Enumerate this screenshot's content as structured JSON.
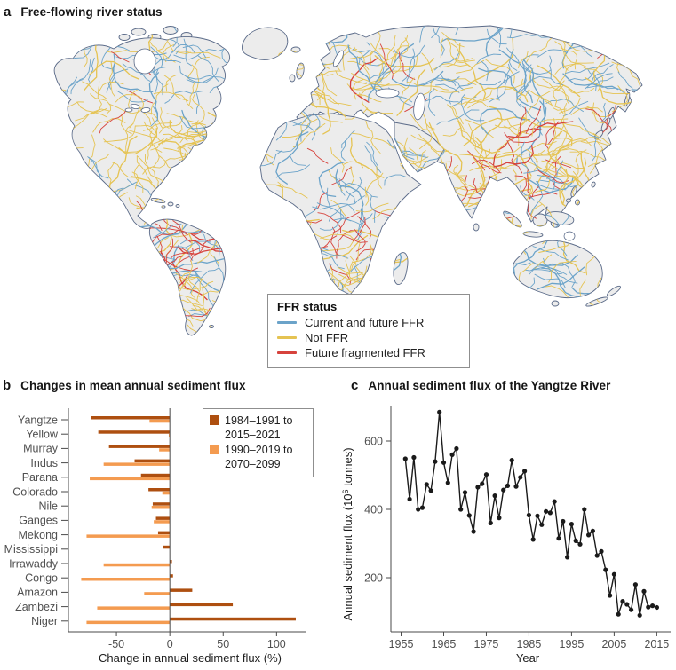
{
  "figure": {
    "bg": "#ffffff"
  },
  "panels": {
    "a": {
      "letter": "a",
      "title": "Free-flowing river status"
    },
    "b": {
      "letter": "b",
      "title": "Changes in mean annual sediment flux"
    },
    "c": {
      "letter": "c",
      "title": "Annual sediment flux of the Yangtze River"
    }
  },
  "map": {
    "land_fill": "#ececec",
    "coast_stroke": "#5a6a88",
    "legend": {
      "title": "FFR status",
      "items": [
        {
          "label": "Current and future FFR",
          "color": "#6ba3c9"
        },
        {
          "label": "Not FFR",
          "color": "#e5c352"
        },
        {
          "label": "Future fragmented FFR",
          "color": "#d6423c"
        }
      ]
    }
  },
  "chart_data": [
    {
      "type": "bar",
      "orientation": "horizontal",
      "title": "Changes in mean annual sediment flux",
      "xlabel": "Change in annual sediment flux (%)",
      "xlim": [
        -95,
        128
      ],
      "xticks": [
        -50,
        0,
        50,
        100
      ],
      "grid": false,
      "legend_position": "top-right",
      "categories": [
        "Yangtze",
        "Yellow",
        "Murray",
        "Indus",
        "Parana",
        "Colorado",
        "Nile",
        "Ganges",
        "Mekong",
        "Mississippi",
        "Irrawaddy",
        "Congo",
        "Amazon",
        "Zambezi",
        "Niger"
      ],
      "series": [
        {
          "name": "1984–1991 to 2015–2021",
          "color": "#ae4f10",
          "values": [
            -74,
            -67,
            -57,
            -33,
            -27,
            -20,
            -16,
            -13,
            -11,
            -6,
            2,
            3,
            21,
            59,
            118
          ]
        },
        {
          "name": "1990–2019 to 2070–2099",
          "color": "#f49b50",
          "values": [
            -19,
            -1,
            -10,
            -62,
            -75,
            -7,
            -17,
            -15,
            -78,
            0,
            -62,
            -83,
            -24,
            -68,
            -78
          ]
        }
      ]
    },
    {
      "type": "line",
      "marker": "circle",
      "title": "Annual sediment flux of the Yangtze River",
      "xlabel": "Year",
      "ylabel": {
        "pre": "Annual sediment flux (10",
        "sup": "6",
        "post": " tonnes)"
      },
      "color": "#1a1a1a",
      "xlim": [
        1952.6,
        2016.8
      ],
      "ylim": [
        42,
        700
      ],
      "xticks": [
        1955,
        1965,
        1975,
        1985,
        1995,
        2005,
        2015
      ],
      "yticks": [
        200,
        400,
        600
      ],
      "x": [
        1956,
        1957,
        1958,
        1959,
        1960,
        1961,
        1962,
        1963,
        1964,
        1965,
        1966,
        1967,
        1968,
        1969,
        1970,
        1971,
        1972,
        1973,
        1974,
        1975,
        1976,
        1977,
        1978,
        1979,
        1980,
        1981,
        1982,
        1983,
        1984,
        1985,
        1986,
        1987,
        1988,
        1989,
        1990,
        1991,
        1992,
        1993,
        1994,
        1995,
        1996,
        1997,
        1998,
        1999,
        2000,
        2001,
        2002,
        2003,
        2004,
        2005,
        2006,
        2007,
        2008,
        2009,
        2010,
        2011,
        2012,
        2013,
        2014,
        2015
      ],
      "y": [
        548,
        430,
        552,
        400,
        405,
        473,
        455,
        540,
        685,
        537,
        478,
        560,
        578,
        400,
        450,
        382,
        335,
        465,
        475,
        502,
        360,
        440,
        375,
        457,
        469,
        544,
        467,
        494,
        512,
        383,
        312,
        381,
        355,
        394,
        390,
        423,
        315,
        365,
        260,
        357,
        308,
        298,
        400,
        325,
        337,
        265,
        277,
        223,
        148,
        210,
        93,
        131,
        122,
        106,
        180,
        90,
        160,
        114,
        118,
        113
      ]
    }
  ]
}
